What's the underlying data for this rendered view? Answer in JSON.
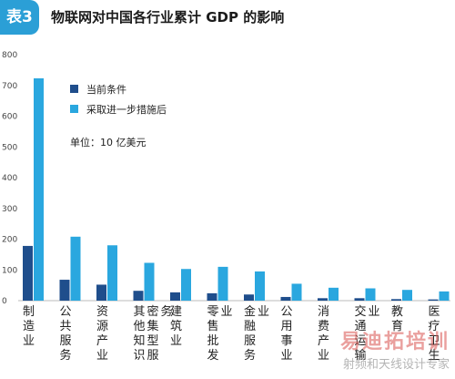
{
  "header": {
    "badge": "表3",
    "title": "物联网对中国各行业累计 GDP 的影响"
  },
  "watermark": {
    "logo": "易迪拓培训",
    "sub": "射频和天线设计专家"
  },
  "chart_data": {
    "type": "bar",
    "title": "物联网对中国各行业累计 GDP 的影响",
    "unit_note": "单位：10 亿美元",
    "categories": [
      "制造业",
      "公共服务",
      "资源产业",
      "其他知识密集型服务",
      "建筑业",
      "零售批发业",
      "金融服务业",
      "公用事业",
      "消费产业",
      "交通运输业",
      "教育",
      "医疗卫生"
    ],
    "series": [
      {
        "name": "当前条件",
        "color": "#1f4e8c",
        "values": [
          178,
          68,
          52,
          32,
          27,
          24,
          20,
          12,
          8,
          8,
          5,
          4
        ]
      },
      {
        "name": "采取进一步措施后",
        "color": "#2aa7df",
        "values": [
          723,
          208,
          180,
          123,
          103,
          110,
          95,
          55,
          42,
          40,
          35,
          30
        ]
      }
    ],
    "ylim": [
      0,
      800
    ],
    "yticks": [
      0,
      100,
      200,
      300,
      400,
      500,
      600,
      700,
      800
    ],
    "grid": false,
    "legend_position": "top-left-inside"
  }
}
